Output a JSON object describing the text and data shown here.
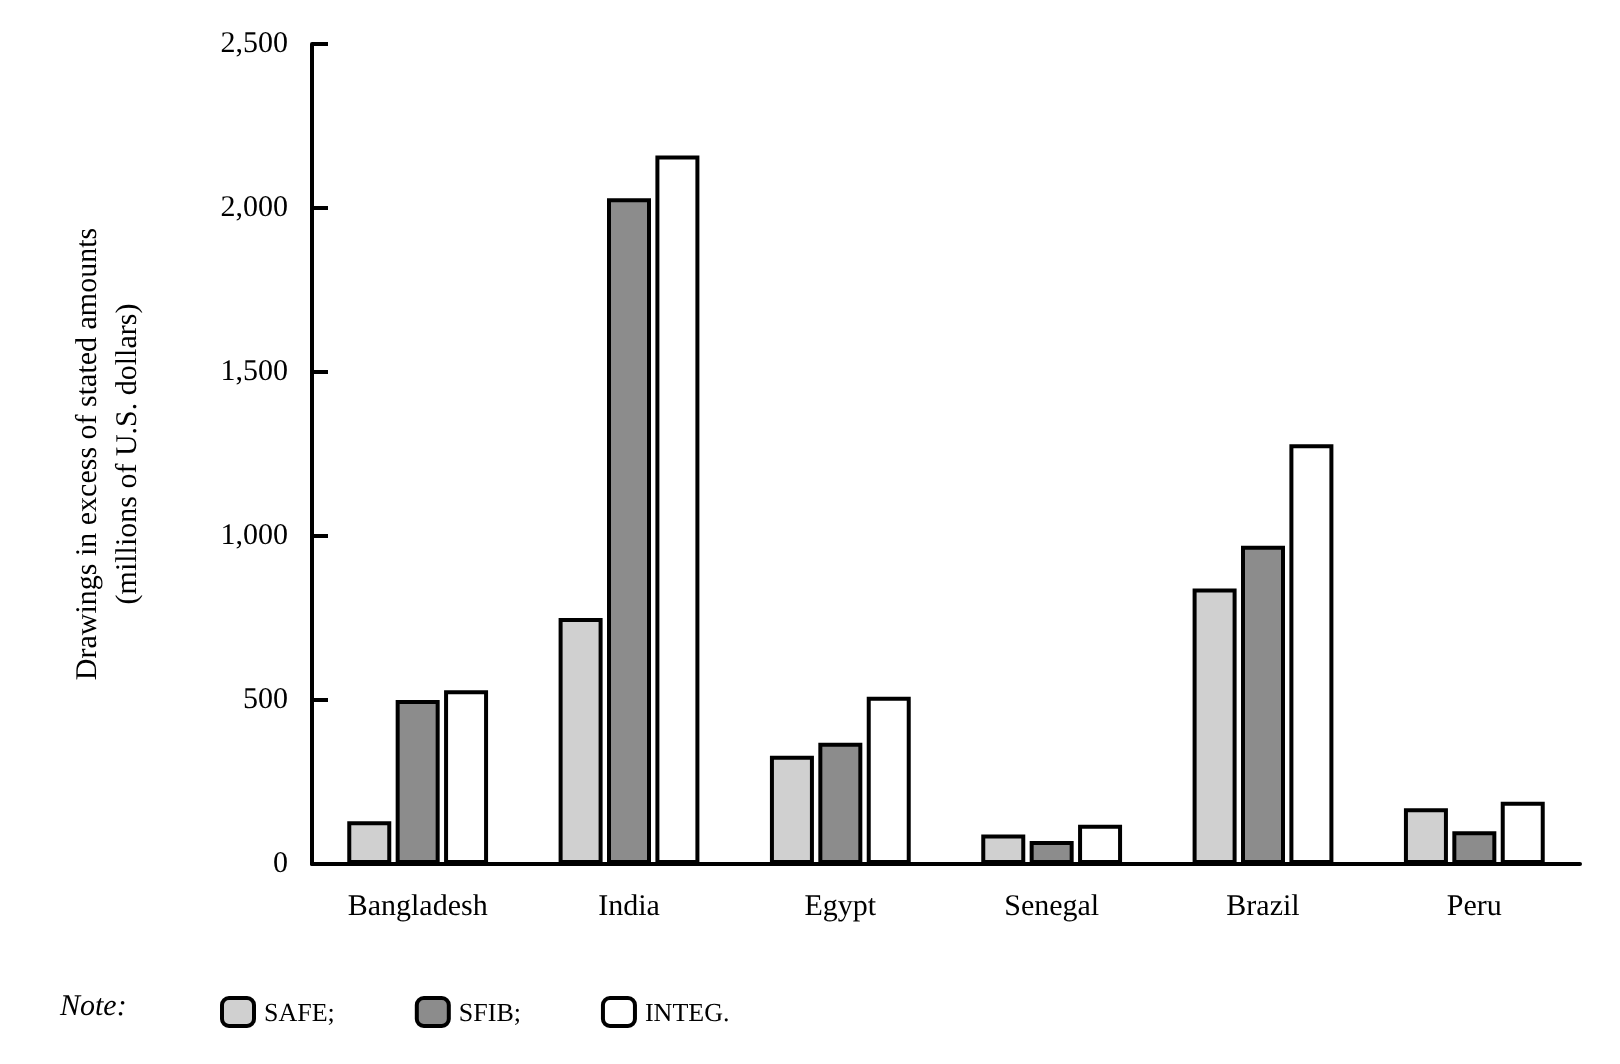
{
  "chart_data": {
    "type": "bar",
    "ylabel": "Drawings in excess of stated amounts\n(millions of U.S. dollars)",
    "categories": [
      "Bangladesh",
      "India",
      "Egypt",
      "Senegal",
      "Brazil",
      "Peru"
    ],
    "series": [
      {
        "name": "SAFE;",
        "color": "#d0d0d0",
        "values": [
          130,
          750,
          330,
          90,
          840,
          170
        ]
      },
      {
        "name": "SFIB;",
        "color": "#8c8c8c",
        "values": [
          500,
          2030,
          370,
          70,
          970,
          100
        ]
      },
      {
        "name": "INTEG.",
        "color": "#ffffff",
        "values": [
          530,
          2160,
          510,
          120,
          1280,
          190
        ]
      }
    ],
    "ylim": [
      0,
      2500
    ],
    "yticks": [
      0,
      500,
      {
        "value": 1000,
        "label": "1,000"
      },
      {
        "value": 1500,
        "label": "1,500"
      },
      {
        "value": 2000,
        "label": "2,000"
      },
      {
        "value": 2500,
        "label": "2,500"
      }
    ],
    "grid": false,
    "legend": "bottom left",
    "annotations": [
      "Note:"
    ]
  }
}
